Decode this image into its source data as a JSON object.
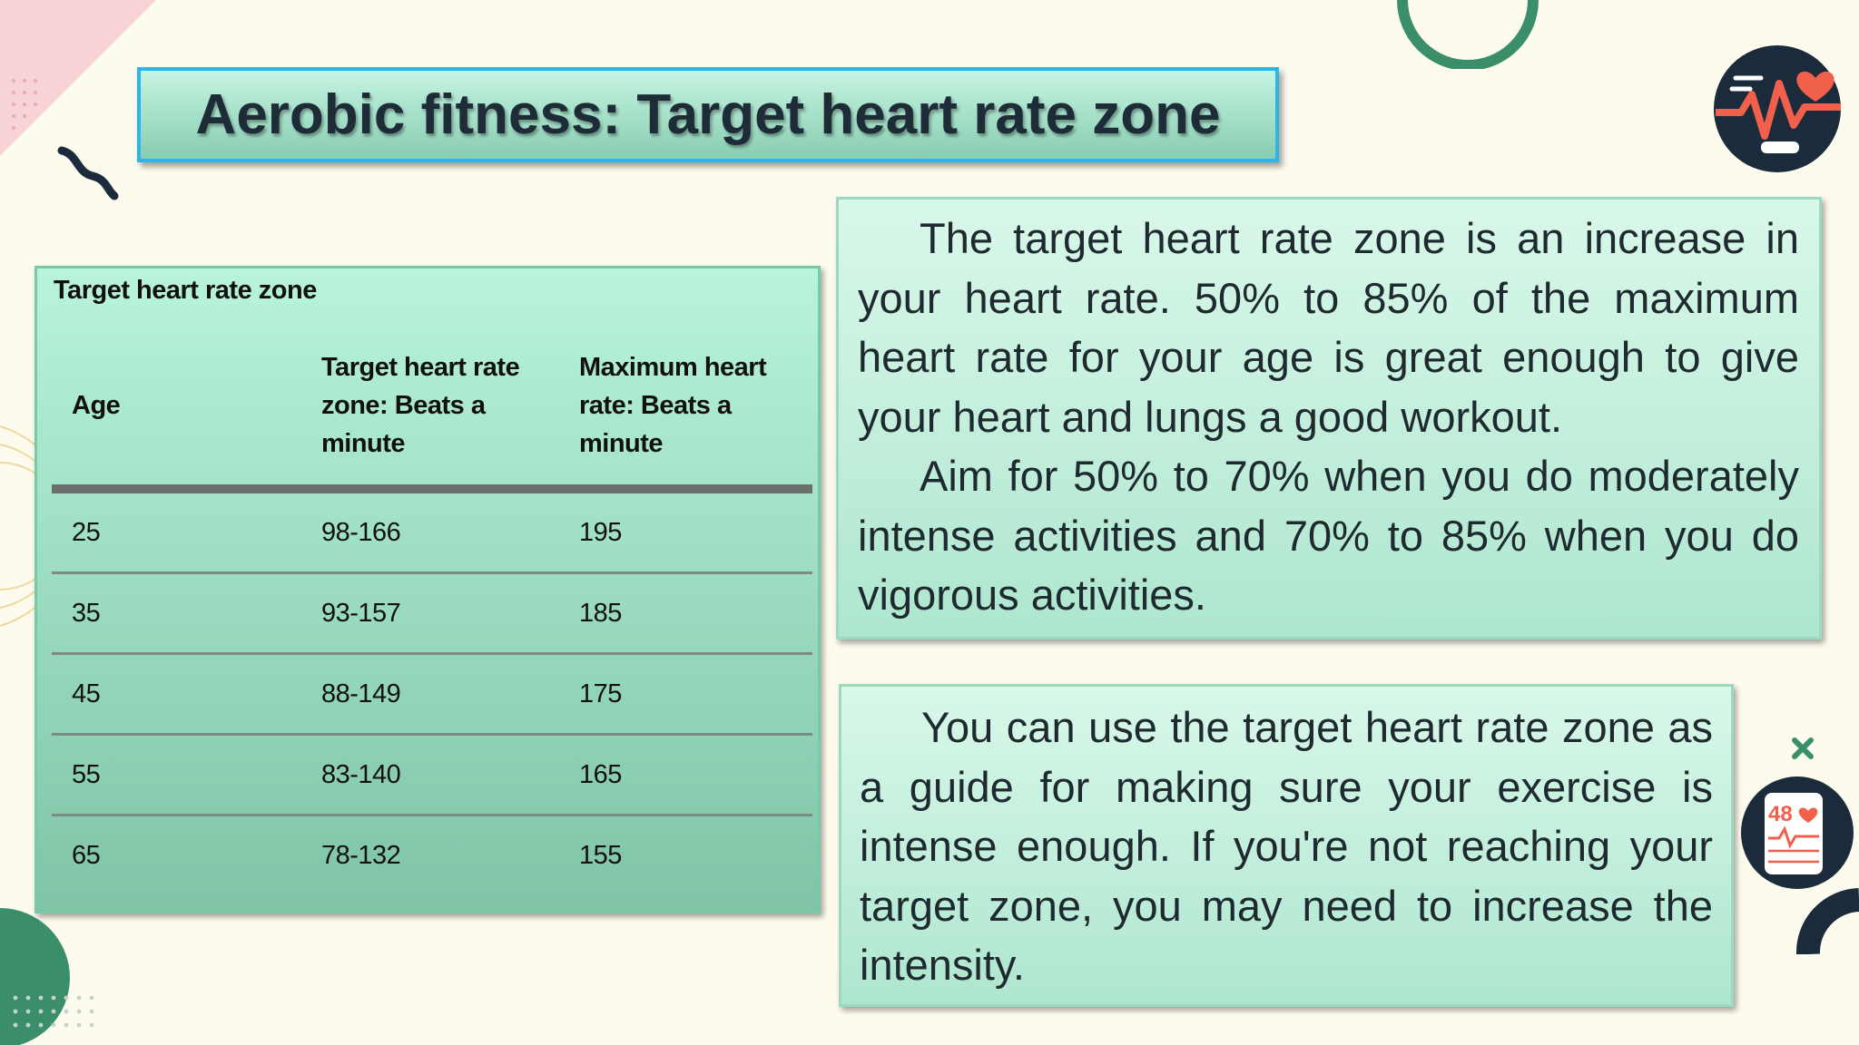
{
  "title": "Aerobic fitness: Target heart rate zone",
  "table": {
    "caption": "Target heart rate zone",
    "headers": [
      "Age",
      "Target heart rate zone: Beats a minute",
      "Maximum heart rate: Beats a minute"
    ],
    "header_lines": {
      "col1": [
        "Age"
      ],
      "col2": [
        "Target heart rate",
        "zone: Beats a",
        "minute"
      ],
      "col3": [
        "Maximum heart",
        "rate: Beats a",
        "minute"
      ]
    },
    "rows": [
      {
        "age": "25",
        "zone": "98-166",
        "max": "195"
      },
      {
        "age": "35",
        "zone": "93-157",
        "max": "185"
      },
      {
        "age": "45",
        "zone": "88-149",
        "max": "175"
      },
      {
        "age": "55",
        "zone": "83-140",
        "max": "165"
      },
      {
        "age": "65",
        "zone": "78-132",
        "max": "155"
      }
    ]
  },
  "box1": {
    "p1": "The target heart rate zone is an increase in your heart rate. 50% to 85% of the maximum heart rate for your age is great enough to give your heart and lungs a good workout.",
    "p2": "Aim for 50% to 70% when you do moderately intense activities and 70% to 85% when you do vigorous activities."
  },
  "box2": {
    "p1": "You can use the target heart rate zone as a guide for making sure your exercise is intense enough. If you're not reaching your target zone, you may need to increase the intensity."
  },
  "decorations": {
    "heart_monitor_icon": "heart-monitor-icon",
    "smartwatch_icon": "smartwatch-icon",
    "smartwatch_reading": "48",
    "colors": {
      "accent_green": "#3a8f6a",
      "navy": "#1c2b3c",
      "coral": "#f0604a",
      "pink": "#f8c8cc",
      "title_border": "#2bb5e8"
    }
  }
}
